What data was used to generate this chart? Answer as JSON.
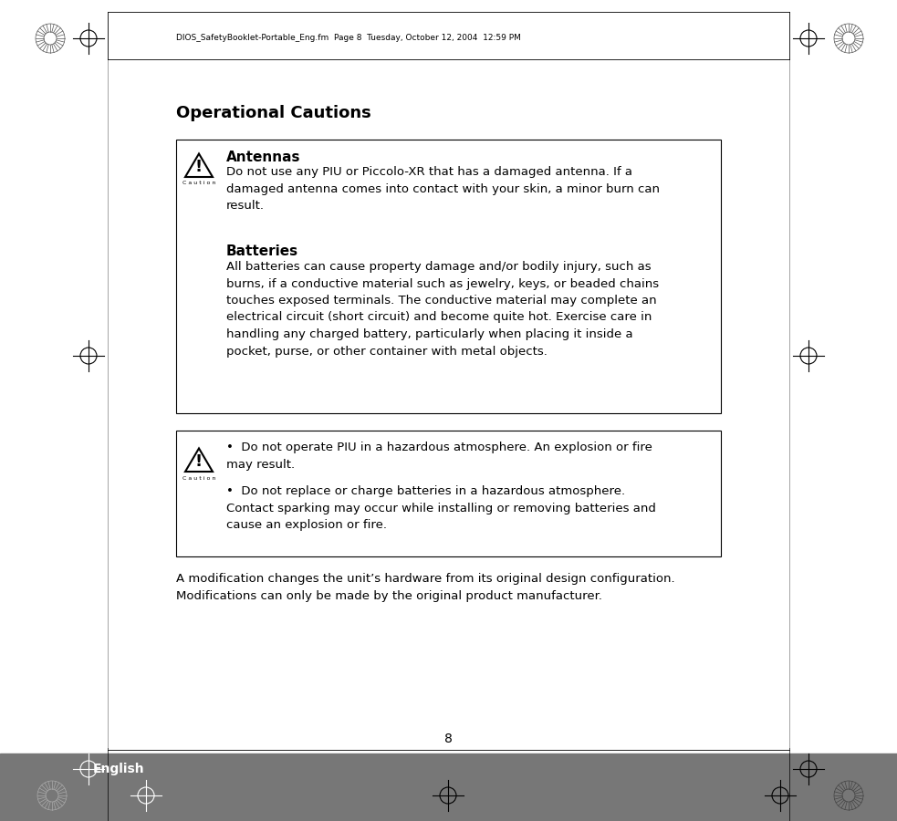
{
  "page_num": "8",
  "header_text": "DIOS_SafetyBooklet-Portable_Eng.fm  Page 8  Tuesday, October 12, 2004  12:59 PM",
  "title": "Operational Cautions",
  "section1_header": "Antennas",
  "section1_body": "Do not use any PIU or Piccolo-XR that has a damaged antenna. If a\ndamaged antenna comes into contact with your skin, a minor burn can\nresult.",
  "section2_header": "Batteries",
  "section2_body": "All batteries can cause property damage and/or bodily injury, such as\nburns, if a conductive material such as jewelry, keys, or beaded chains\ntouches exposed terminals. The conductive material may complete an\nelectrical circuit (short circuit) and become quite hot. Exercise care in\nhandling any charged battery, particularly when placing it inside a\npocket, purse, or other container with metal objects.",
  "box2_line1": "Do not operate PIU in a hazardous atmosphere. An explosion or fire\nmay result.",
  "box2_line2": "Do not replace or charge batteries in a hazardous atmosphere.\nContact sparking may occur while installing or removing batteries and\ncause an explosion or fire.",
  "footer_text": "A modification changes the unit’s hardware from its original design configuration.\nModifications can only be made by the original product manufacturer.",
  "english_label": "English",
  "bg_color": "#ffffff",
  "gray_bar_color": "#777777",
  "body_fontsize": 9.5,
  "header_fontsize": 11,
  "title_fontsize": 13
}
